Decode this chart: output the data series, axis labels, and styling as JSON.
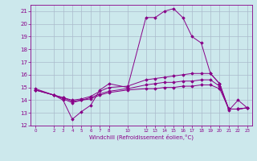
{
  "xlabel": "Windchill (Refroidissement éolien,°C)",
  "ylabel": "",
  "bg_color": "#cce8ec",
  "line_color": "#880088",
  "grid_color": "#aabbcc",
  "ylim": [
    12,
    21.5
  ],
  "xlim": [
    -0.5,
    23.5
  ],
  "yticks": [
    12,
    13,
    14,
    15,
    16,
    17,
    18,
    19,
    20,
    21
  ],
  "xticks": [
    0,
    2,
    3,
    4,
    5,
    6,
    7,
    8,
    10,
    12,
    13,
    14,
    15,
    16,
    17,
    18,
    19,
    20,
    21,
    22,
    23
  ],
  "lines": [
    {
      "x": [
        0,
        2,
        3,
        4,
        5,
        6,
        7,
        8,
        10,
        12,
        13,
        14,
        15,
        16,
        17,
        18,
        19,
        20,
        21,
        22,
        23
      ],
      "y": [
        14.8,
        14.4,
        14.0,
        12.5,
        13.1,
        13.6,
        14.8,
        15.3,
        15.0,
        20.5,
        20.5,
        21.0,
        21.2,
        20.5,
        19.0,
        18.5,
        16.1,
        15.3,
        13.2,
        14.0,
        13.4
      ]
    },
    {
      "x": [
        0,
        2,
        3,
        4,
        5,
        6,
        7,
        8,
        10,
        12,
        13,
        14,
        15,
        16,
        17,
        18,
        19,
        20,
        21,
        22,
        23
      ],
      "y": [
        14.9,
        14.4,
        14.2,
        14.0,
        14.1,
        14.3,
        14.7,
        15.0,
        15.1,
        15.6,
        15.7,
        15.8,
        15.9,
        16.0,
        16.1,
        16.1,
        16.1,
        15.3,
        13.3,
        13.3,
        13.4
      ]
    },
    {
      "x": [
        0,
        2,
        3,
        4,
        5,
        6,
        7,
        8,
        10,
        12,
        13,
        14,
        15,
        16,
        17,
        18,
        19,
        20,
        21,
        22,
        23
      ],
      "y": [
        14.8,
        14.4,
        14.2,
        13.9,
        14.0,
        14.2,
        14.5,
        14.7,
        14.9,
        15.2,
        15.3,
        15.4,
        15.4,
        15.5,
        15.5,
        15.6,
        15.6,
        15.1,
        13.3,
        13.3,
        13.4
      ]
    },
    {
      "x": [
        0,
        2,
        3,
        4,
        5,
        6,
        7,
        8,
        10,
        12,
        13,
        14,
        15,
        16,
        17,
        18,
        19,
        20,
        21,
        22,
        23
      ],
      "y": [
        14.8,
        14.4,
        14.1,
        13.8,
        14.0,
        14.1,
        14.4,
        14.6,
        14.8,
        14.9,
        14.9,
        15.0,
        15.0,
        15.1,
        15.1,
        15.2,
        15.2,
        14.9,
        13.3,
        13.3,
        13.4
      ]
    }
  ]
}
